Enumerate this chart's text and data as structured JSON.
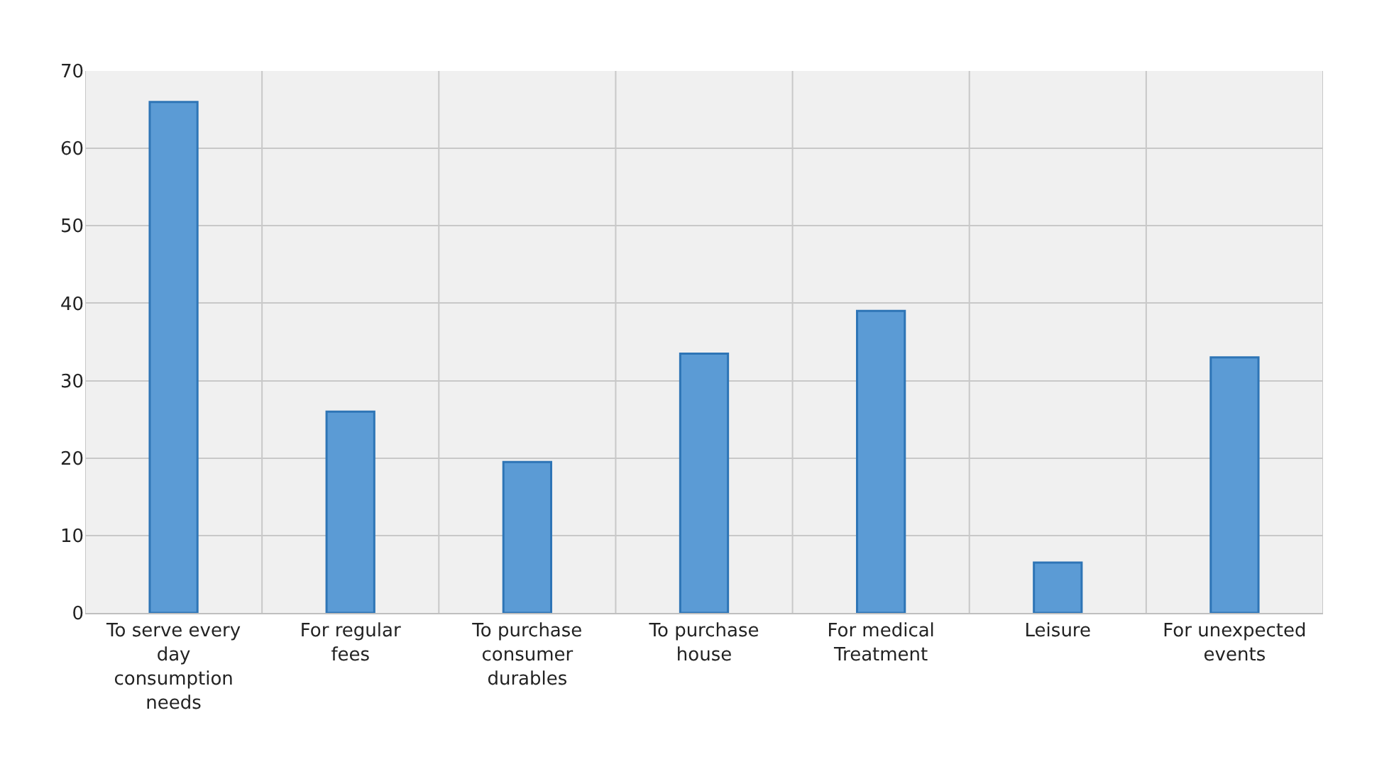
{
  "chart_data": {
    "type": "bar",
    "categories": [
      "To serve every day consumption needs",
      "For regular fees",
      "To purchase consumer durables",
      "To purchase house",
      "For medical Treatment",
      "Leisure",
      "For unexpected events"
    ],
    "values": [
      66,
      26,
      19.5,
      33.5,
      39,
      6.5,
      33
    ],
    "color": "#5b9bd5",
    "ylim": [
      0,
      70
    ],
    "yticks": [
      0,
      10,
      20,
      30,
      40,
      50,
      60,
      70
    ],
    "grid": true,
    "legend": false
  }
}
